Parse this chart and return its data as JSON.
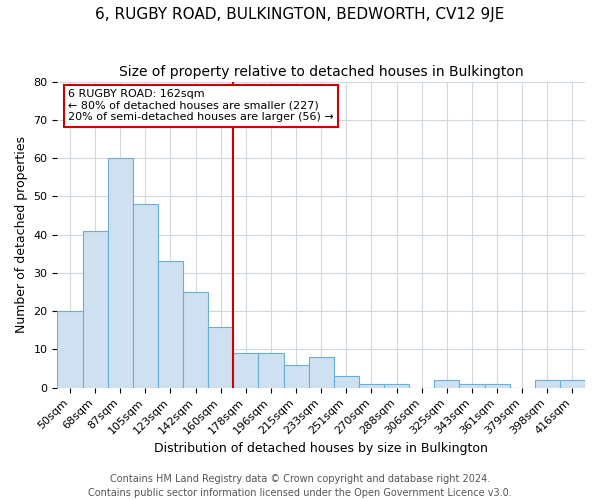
{
  "title": "6, RUGBY ROAD, BULKINGTON, BEDWORTH, CV12 9JE",
  "subtitle": "Size of property relative to detached houses in Bulkington",
  "xlabel": "Distribution of detached houses by size in Bulkington",
  "ylabel": "Number of detached properties",
  "categories": [
    "50sqm",
    "68sqm",
    "87sqm",
    "105sqm",
    "123sqm",
    "142sqm",
    "160sqm",
    "178sqm",
    "196sqm",
    "215sqm",
    "233sqm",
    "251sqm",
    "270sqm",
    "288sqm",
    "306sqm",
    "325sqm",
    "343sqm",
    "361sqm",
    "379sqm",
    "398sqm",
    "416sqm"
  ],
  "values": [
    20,
    41,
    60,
    48,
    33,
    25,
    16,
    9,
    9,
    6,
    8,
    3,
    1,
    1,
    0,
    2,
    1,
    1,
    0,
    2,
    2
  ],
  "bar_color": "#cfe0f0",
  "bar_edge_color": "#6aaed6",
  "highlight_index": 6,
  "highlight_line_color": "#cc0000",
  "annotation_line1": "6 RUGBY ROAD: 162sqm",
  "annotation_line2": "← 80% of detached houses are smaller (227)",
  "annotation_line3": "20% of semi-detached houses are larger (56) →",
  "annotation_box_color": "#ffffff",
  "annotation_box_edge": "#cc0000",
  "ylim": [
    0,
    80
  ],
  "yticks": [
    0,
    10,
    20,
    30,
    40,
    50,
    60,
    70,
    80
  ],
  "footer1": "Contains HM Land Registry data © Crown copyright and database right 2024.",
  "footer2": "Contains public sector information licensed under the Open Government Licence v3.0.",
  "bg_color": "#ffffff",
  "grid_color": "#d0d8e0",
  "title_fontsize": 11,
  "subtitle_fontsize": 10,
  "axis_label_fontsize": 9,
  "tick_fontsize": 8,
  "annotation_fontsize": 8,
  "footer_fontsize": 7
}
